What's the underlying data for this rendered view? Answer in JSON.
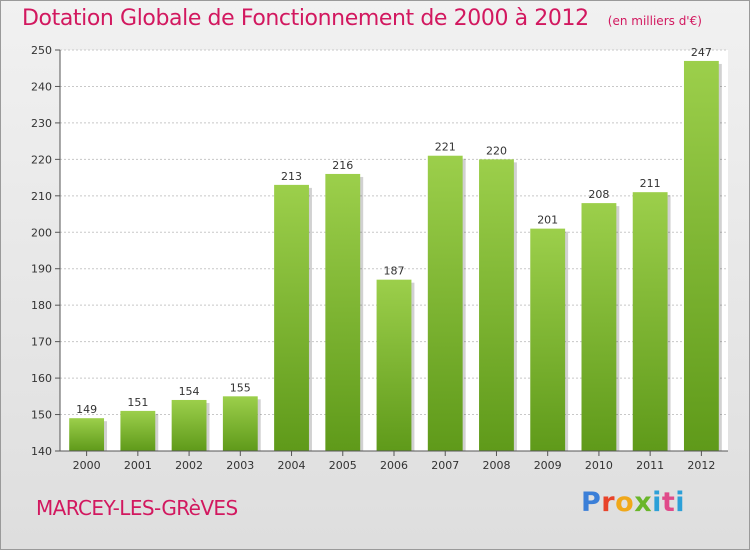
{
  "header": {
    "title": "Dotation Globale de Fonctionnement de 2000 à 2012",
    "subtitle": "(en milliers d'€)"
  },
  "footer": {
    "town": "MARCEY-LES-GRèVES",
    "logo_text": "Proxiti"
  },
  "colors": {
    "accent": "#d2185f",
    "bar_top": "#9ccf4b",
    "bar_bottom": "#5f9a1a",
    "grid": "#c8c8c8"
  },
  "chart_data": {
    "type": "bar",
    "title": "Dotation Globale de Fonctionnement de 2000 à 2012",
    "subtitle": "(en milliers d'€)",
    "categories": [
      "2000",
      "2001",
      "2002",
      "2003",
      "2004",
      "2005",
      "2006",
      "2007",
      "2008",
      "2009",
      "2010",
      "2011",
      "2012"
    ],
    "values": [
      149,
      151,
      154,
      155,
      213,
      216,
      187,
      221,
      220,
      201,
      208,
      211,
      247
    ],
    "ylim": [
      140,
      250
    ],
    "yticks": [
      140,
      150,
      160,
      170,
      180,
      190,
      200,
      210,
      220,
      230,
      240,
      250
    ],
    "grid": true,
    "xlabel": "",
    "ylabel": ""
  }
}
